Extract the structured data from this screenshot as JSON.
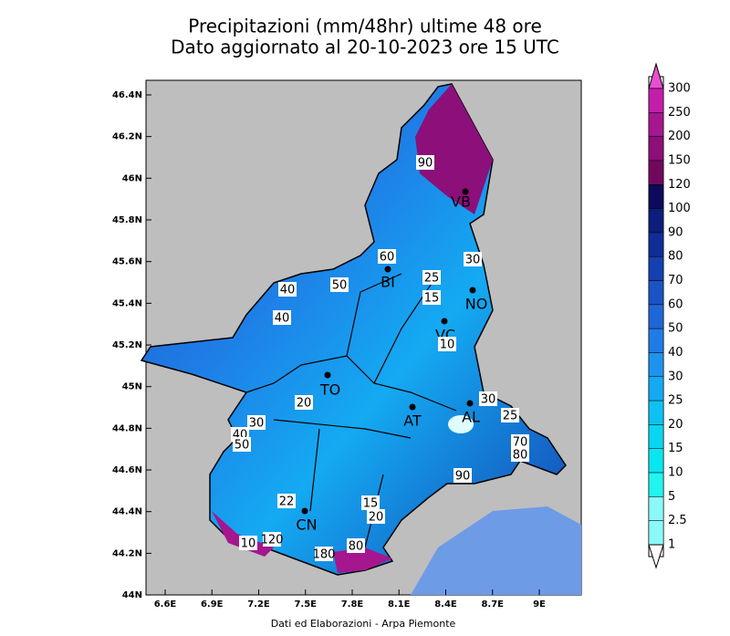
{
  "header": {
    "title_lines": [
      "Precipitazioni (mm/48hr) ultime 48 ore",
      "Dato aggiornato al 20-10-2023 ore 15 UTC"
    ]
  },
  "map": {
    "lat_ticks": [
      "46.4N",
      "46.2N",
      "46N",
      "45.8N",
      "45.6N",
      "45.4N",
      "45.2N",
      "45N",
      "44.8N",
      "44.6N",
      "44.4N",
      "44.2N",
      "44N"
    ],
    "lon_ticks": [
      "6.6E",
      "6.9E",
      "7.2E",
      "7.5E",
      "7.8E",
      "8.1E",
      "8.4E",
      "8.7E",
      "9E"
    ],
    "cities": [
      "VB",
      "BI",
      "NO",
      "VC",
      "TO",
      "AT",
      "AL",
      "CN"
    ],
    "contour_labels": [
      "90",
      "60",
      "50",
      "40",
      "40",
      "25",
      "15",
      "30",
      "10",
      "20",
      "30",
      "40",
      "50",
      "30",
      "25",
      "70",
      "80",
      "90",
      "22",
      "15",
      "20",
      "120",
      "10",
      "180",
      "80"
    ]
  },
  "colorbar": {
    "labels": [
      "300",
      "250",
      "200",
      "150",
      "120",
      "100",
      "90",
      "80",
      "70",
      "60",
      "50",
      "40",
      "30",
      "25",
      "20",
      "15",
      "10",
      "5",
      "2.5",
      "1"
    ],
    "colors": [
      "#e84fd0",
      "#c21eaa",
      "#a5168f",
      "#8c0f7a",
      "#72085e",
      "#0b0b5a",
      "#0c1d7a",
      "#0f2d96",
      "#1540b0",
      "#1a53c4",
      "#1f66d6",
      "#1f7ce6",
      "#1c93ef",
      "#14aaf2",
      "#0dc2f3",
      "#0ad6f0",
      "#08e6ee",
      "#22f4f1",
      "#8af9f7",
      "#ffffff"
    ]
  },
  "footer": "Dati ed Elaborazioni - Arpa Piemonte"
}
